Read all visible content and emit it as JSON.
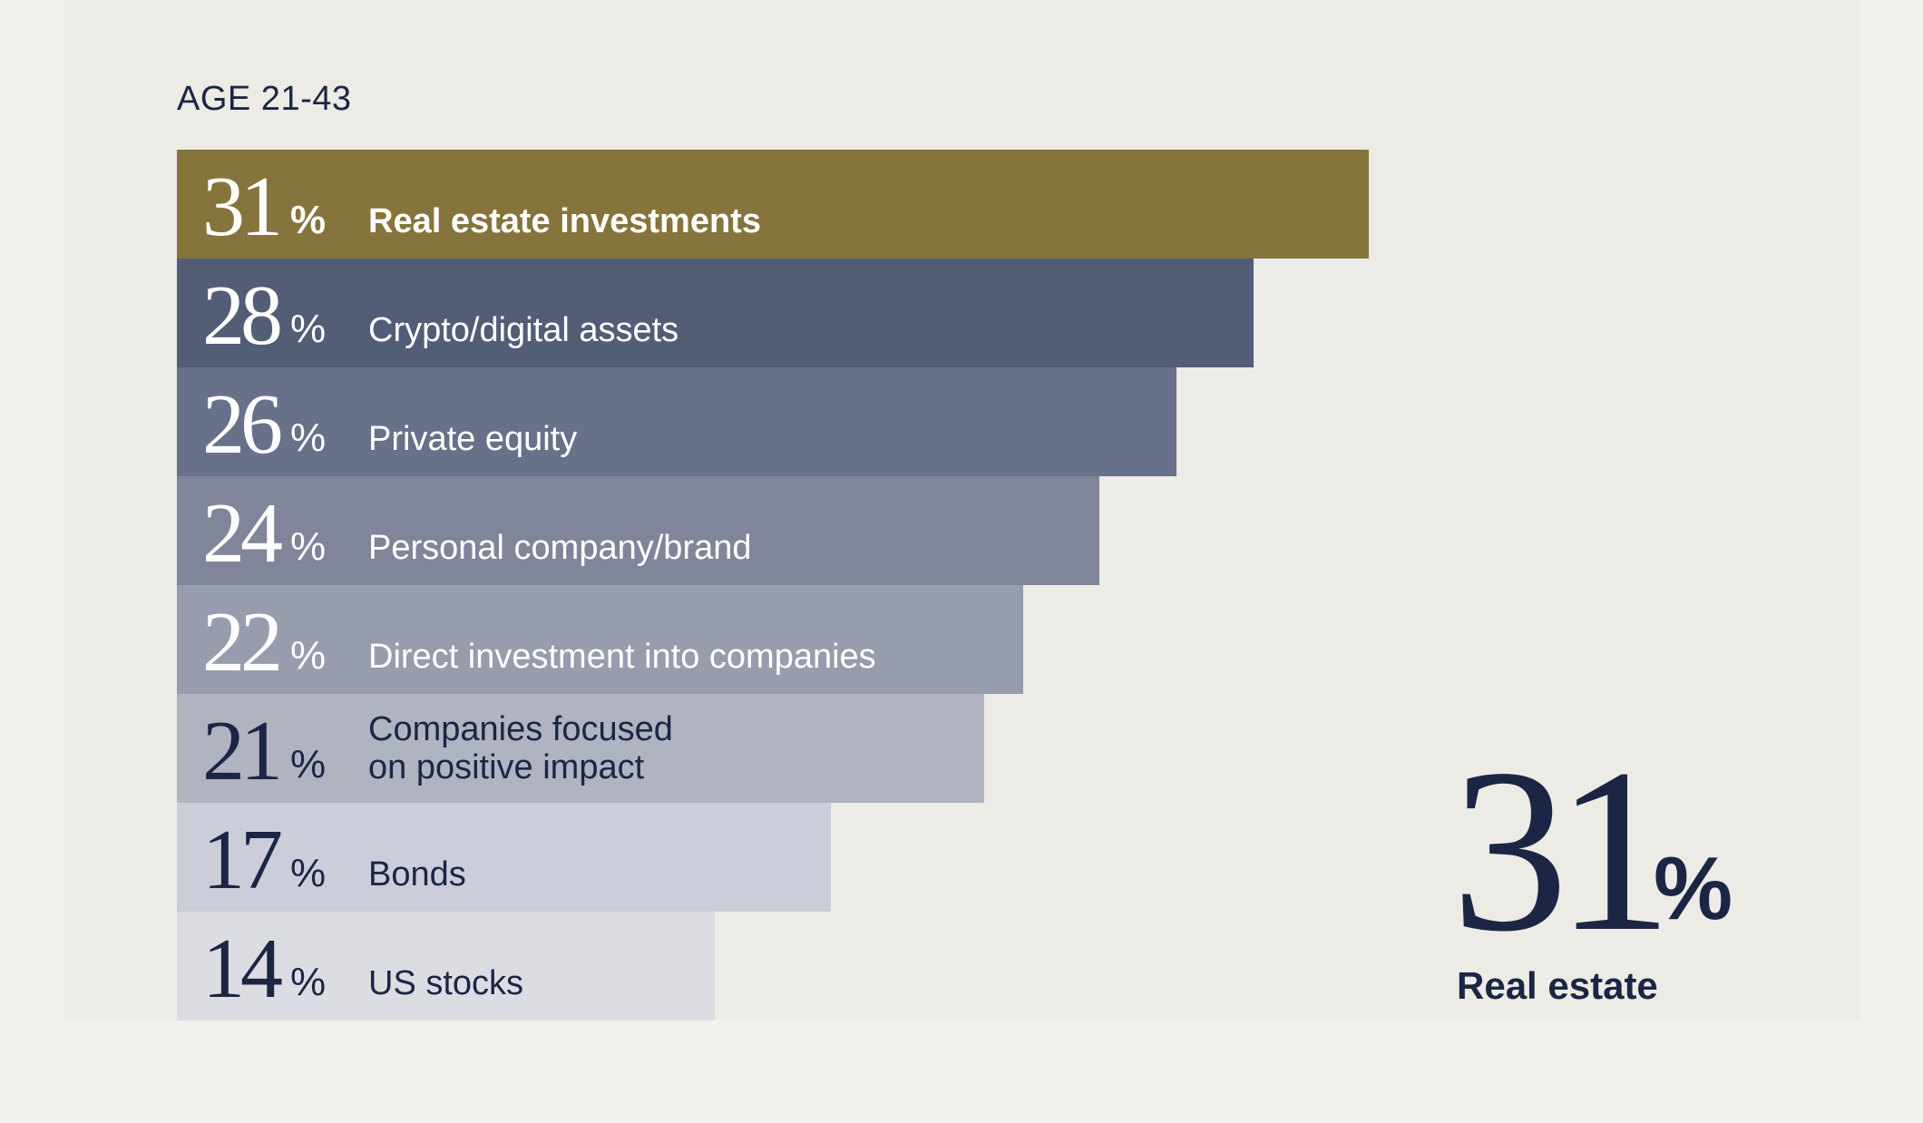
{
  "chart_data": {
    "type": "bar",
    "title": "AGE 21-43",
    "orientation": "horizontal",
    "categories": [
      "Real estate investments",
      "Crypto/digital assets",
      "Private equity",
      "Personal company/brand",
      "Direct investment into companies",
      "Companies focused on positive impact",
      "Bonds",
      "US stocks"
    ],
    "values": [
      31,
      28,
      26,
      24,
      22,
      21,
      17,
      14
    ],
    "unit": "%",
    "xlim": [
      0,
      31
    ],
    "colors": [
      "#85743c",
      "#525d76",
      "#67718a",
      "#808599",
      "#979dad",
      "#b0b4c0",
      "#cbcdd9",
      "#dcdde3"
    ],
    "label_colors": [
      "#ffffff",
      "#ffffff",
      "#ffffff",
      "#ffffff",
      "#ffffff",
      "#1b2644",
      "#1b2644",
      "#1b2644"
    ],
    "bold_label_index": 0,
    "bars": [
      {
        "num": "31",
        "pct": "%",
        "lines": [
          "Real estate investments"
        ]
      },
      {
        "num": "28",
        "pct": "%",
        "lines": [
          "Crypto/digital assets"
        ]
      },
      {
        "num": "26",
        "pct": "%",
        "lines": [
          "Private equity"
        ]
      },
      {
        "num": "24",
        "pct": "%",
        "lines": [
          "Personal company/brand"
        ]
      },
      {
        "num": "22",
        "pct": "%",
        "lines": [
          "Direct investment into companies"
        ]
      },
      {
        "num": "21",
        "pct": "%",
        "lines": [
          "Companies focused",
          "on positive impact"
        ]
      },
      {
        "num": "17",
        "pct": "%",
        "lines": [
          "Bonds"
        ]
      },
      {
        "num": "14",
        "pct": "%",
        "lines": [
          "US stocks"
        ]
      }
    ],
    "grid": false,
    "legend": "none"
  },
  "highlight": {
    "number": "31",
    "percent": "%",
    "label": "Real estate"
  },
  "colors": {
    "background": "#f1f0ec",
    "panel": "#ecebe6",
    "text_dark": "#1b2644",
    "accent_gold": "#85743c"
  }
}
